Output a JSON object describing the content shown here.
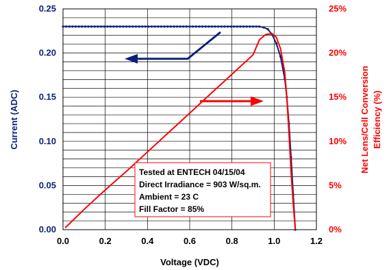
{
  "chart_data": {
    "type": "line",
    "title": "",
    "xlabel": "Voltage (VDC)",
    "ylabel_left": "Current (ADC)",
    "ylabel_right": "Net Lens/Cell Conversion Efficiency (%)",
    "ylabel_right_lines": [
      "Net Lens/Cell Conversion",
      "Efficiency (%)"
    ],
    "xlim": [
      0,
      1.2
    ],
    "ylim_left": [
      0,
      0.25
    ],
    "ylim_right": [
      0,
      25
    ],
    "grid": true,
    "x_ticks": [
      "0.0",
      "0.2",
      "0.4",
      "0.6",
      "0.8",
      "1.0",
      "1.2"
    ],
    "y_left_ticks": [
      "0.00",
      "0.05",
      "0.10",
      "0.15",
      "0.20",
      "0.25"
    ],
    "y_right_ticks": [
      "0%",
      "5%",
      "10%",
      "15%",
      "20%",
      "25%"
    ],
    "series": [
      {
        "axis": "left",
        "color": "#0a1f7a",
        "marker": "dot",
        "x": [
          0.0,
          0.1,
          0.2,
          0.3,
          0.4,
          0.5,
          0.6,
          0.7,
          0.8,
          0.85,
          0.9,
          0.93,
          0.95,
          0.97,
          0.99,
          1.01,
          1.03,
          1.05,
          1.06,
          1.07,
          1.08,
          1.09,
          1.1
        ],
        "y": [
          0.23,
          0.23,
          0.23,
          0.23,
          0.23,
          0.23,
          0.23,
          0.23,
          0.23,
          0.23,
          0.23,
          0.23,
          0.229,
          0.227,
          0.221,
          0.211,
          0.196,
          0.171,
          0.15,
          0.12,
          0.082,
          0.04,
          0.0
        ]
      },
      {
        "axis": "right",
        "color": "#ff0000",
        "marker": "none",
        "x": [
          0.01,
          0.1,
          0.2,
          0.3,
          0.4,
          0.5,
          0.6,
          0.7,
          0.8,
          0.9,
          0.93,
          0.96,
          0.99,
          1.01,
          1.03,
          1.05,
          1.06,
          1.07,
          1.08,
          1.09,
          1.1
        ],
        "y": [
          0.2,
          2.3,
          4.5,
          6.6,
          8.8,
          11.0,
          13.2,
          15.4,
          17.6,
          19.8,
          21.5,
          22.1,
          22.2,
          21.8,
          20.5,
          17.8,
          15.0,
          11.0,
          6.5,
          3.0,
          0.0
        ]
      }
    ],
    "arrows": [
      {
        "direction": "left",
        "color": "#0a1f7a",
        "points_to_axis": "left"
      },
      {
        "direction": "right",
        "color": "#ff0000",
        "points_to_axis": "right"
      }
    ],
    "annotation": {
      "lines": [
        "Tested at ENTECH 04/15/04",
        "Direct Irradiance = 903 W/sq.m.",
        "Ambient = 23 C",
        "Fill Factor = 85%"
      ],
      "border_color": "#ff0000"
    },
    "colors": {
      "left_axis": "#0a1f7a",
      "right_axis": "#ff0000",
      "grid": "#000000"
    }
  }
}
